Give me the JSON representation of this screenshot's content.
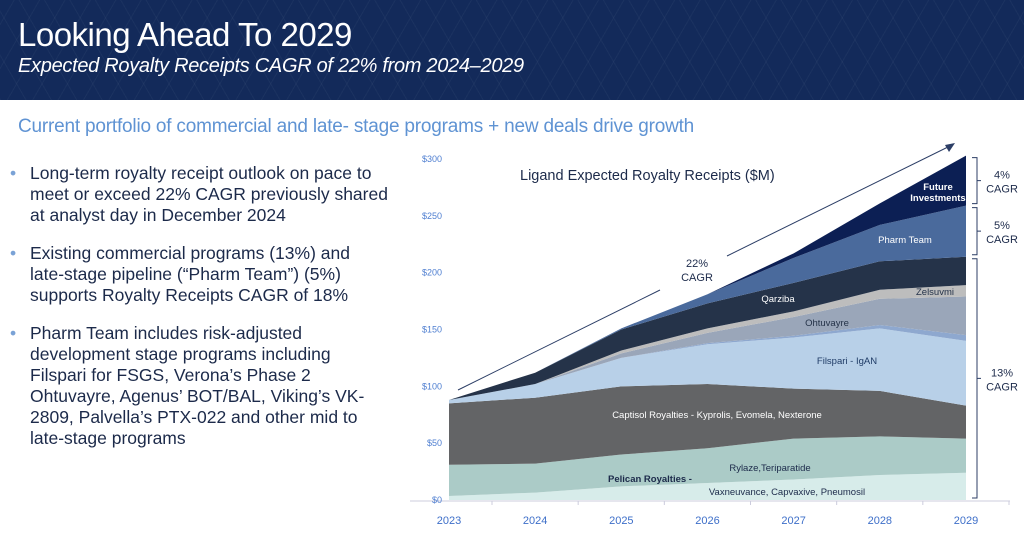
{
  "header": {
    "title": "Looking Ahead To 2029",
    "subtitle": "Expected Royalty Receipts CAGR of 22% from 2024–2029"
  },
  "tagline": "Current portfolio of commercial and late- stage programs + new deals drive growth",
  "bullets": [
    "Long-term royalty receipt outlook on pace to meet or exceed 22% CAGR previously shared at analyst day in December 2024",
    "Existing commercial programs (13%) and late-stage pipeline (“Pharm Team”) (5%) supports Royalty Receipts CAGR of 18%",
    "Pharm Team includes risk-adjusted development stage programs including Filspari for FSGS, Verona’s Phase 2 Ohtuvayre, Agenus’ BOT/BAL, Viking’s VK-2809, Palvella’s PTX-022 and other mid to late-stage programs"
  ],
  "chart_data": {
    "type": "area",
    "stacked": true,
    "title": "Ligand Expected Royalty Receipts ($M)",
    "x": [
      "2023",
      "2024",
      "2025",
      "2026",
      "2027",
      "2028",
      "2029"
    ],
    "ylim": [
      0,
      300
    ],
    "yticks": [
      "$0",
      "$50",
      "$100",
      "$150",
      "$200",
      "$250",
      "$300"
    ],
    "grid": false,
    "series": [
      {
        "name": "Vaxneuvance, Capvaxive, Pneumosil",
        "color": "#d7ecea",
        "values": [
          3.5,
          6.5,
          12,
          15,
          18,
          22,
          24
        ]
      },
      {
        "name": "Rylaze,Teriparatide",
        "color": "#abcbc7",
        "values": [
          27.5,
          25.5,
          28,
          30.5,
          36,
          34,
          30
        ]
      },
      {
        "name": "Captisol Royalties - Kyprolis, Evomela, Nexterone",
        "color": "#636466",
        "values": [
          54,
          58,
          60,
          56.5,
          44,
          40,
          29
        ]
      },
      {
        "name": "Filspari - IgAN",
        "color": "#b8d0e8",
        "values": [
          3,
          12,
          25,
          35,
          45,
          55,
          57
        ]
      },
      {
        "color": "#8ea8cf",
        "values": [
          0,
          0,
          0,
          1,
          1.5,
          3,
          5
        ]
      },
      {
        "name": "Ohtuvayre",
        "color": "#9aa6b9",
        "values": [
          0,
          0,
          4,
          9,
          16.5,
          23,
          34
        ]
      },
      {
        "name": "Zelsuvmi",
        "color": "#bdbdbd",
        "values": [
          0,
          0,
          2.5,
          4,
          5,
          8,
          10
        ]
      },
      {
        "name": "Qarziba",
        "color": "#253349",
        "values": [
          0,
          10,
          18.5,
          22,
          25,
          25,
          25
        ]
      },
      {
        "name": "Pharm Team",
        "color": "#4a6a9c",
        "values": [
          0,
          0,
          1,
          8,
          22,
          32,
          45
        ]
      },
      {
        "name": "Future Investments",
        "color": "#0c1f54",
        "values": [
          0,
          0,
          0,
          0,
          4,
          19,
          44
        ]
      }
    ],
    "group_label": "Pelican Royalties -",
    "annotations": {
      "total_cagr": [
        "22%",
        "CAGR"
      ],
      "brackets": [
        {
          "lines": [
            "4%",
            "CAGR"
          ],
          "range": [
            259,
            303
          ]
        },
        {
          "lines": [
            "5%",
            "CAGR"
          ],
          "range": [
            214,
            259
          ]
        },
        {
          "lines": [
            "13%",
            "CAGR"
          ],
          "range": [
            0,
            214
          ]
        }
      ]
    }
  }
}
